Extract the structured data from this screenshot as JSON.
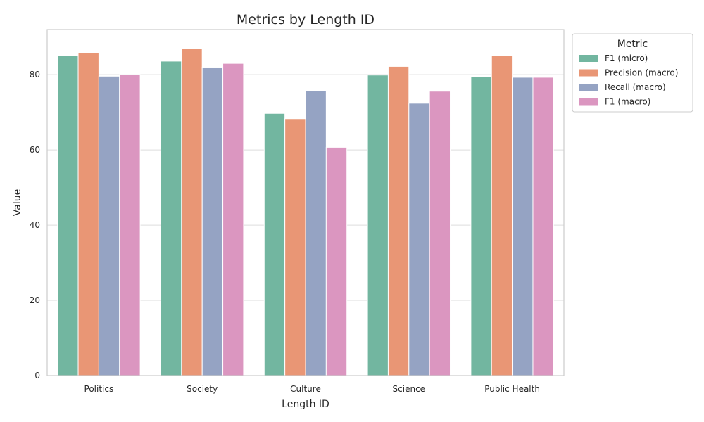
{
  "chart_data": {
    "type": "bar",
    "title": "Metrics by Length ID",
    "xlabel": "Length ID",
    "ylabel": "Value",
    "ylim": [
      0,
      92
    ],
    "yticks": [
      0,
      20,
      40,
      60,
      80
    ],
    "grid": "horizontal",
    "legend": {
      "title": "Metric",
      "placement": "outside-top-right"
    },
    "categories": [
      "Politics",
      "Society",
      "Culture",
      "Science",
      "Public Health"
    ],
    "series": [
      {
        "name": "F1 (micro)",
        "color": "#72b6a0",
        "values": [
          85.0,
          83.6,
          69.7,
          79.9,
          79.5
        ]
      },
      {
        "name": "Precision (macro)",
        "color": "#e99675",
        "values": [
          85.8,
          86.9,
          68.3,
          82.2,
          85.0
        ]
      },
      {
        "name": "Recall (macro)",
        "color": "#95a3c3",
        "values": [
          79.6,
          82.0,
          75.8,
          72.4,
          79.3
        ]
      },
      {
        "name": "F1 (macro)",
        "color": "#db96c0",
        "values": [
          80.0,
          83.0,
          60.7,
          75.6,
          79.3
        ]
      }
    ]
  }
}
